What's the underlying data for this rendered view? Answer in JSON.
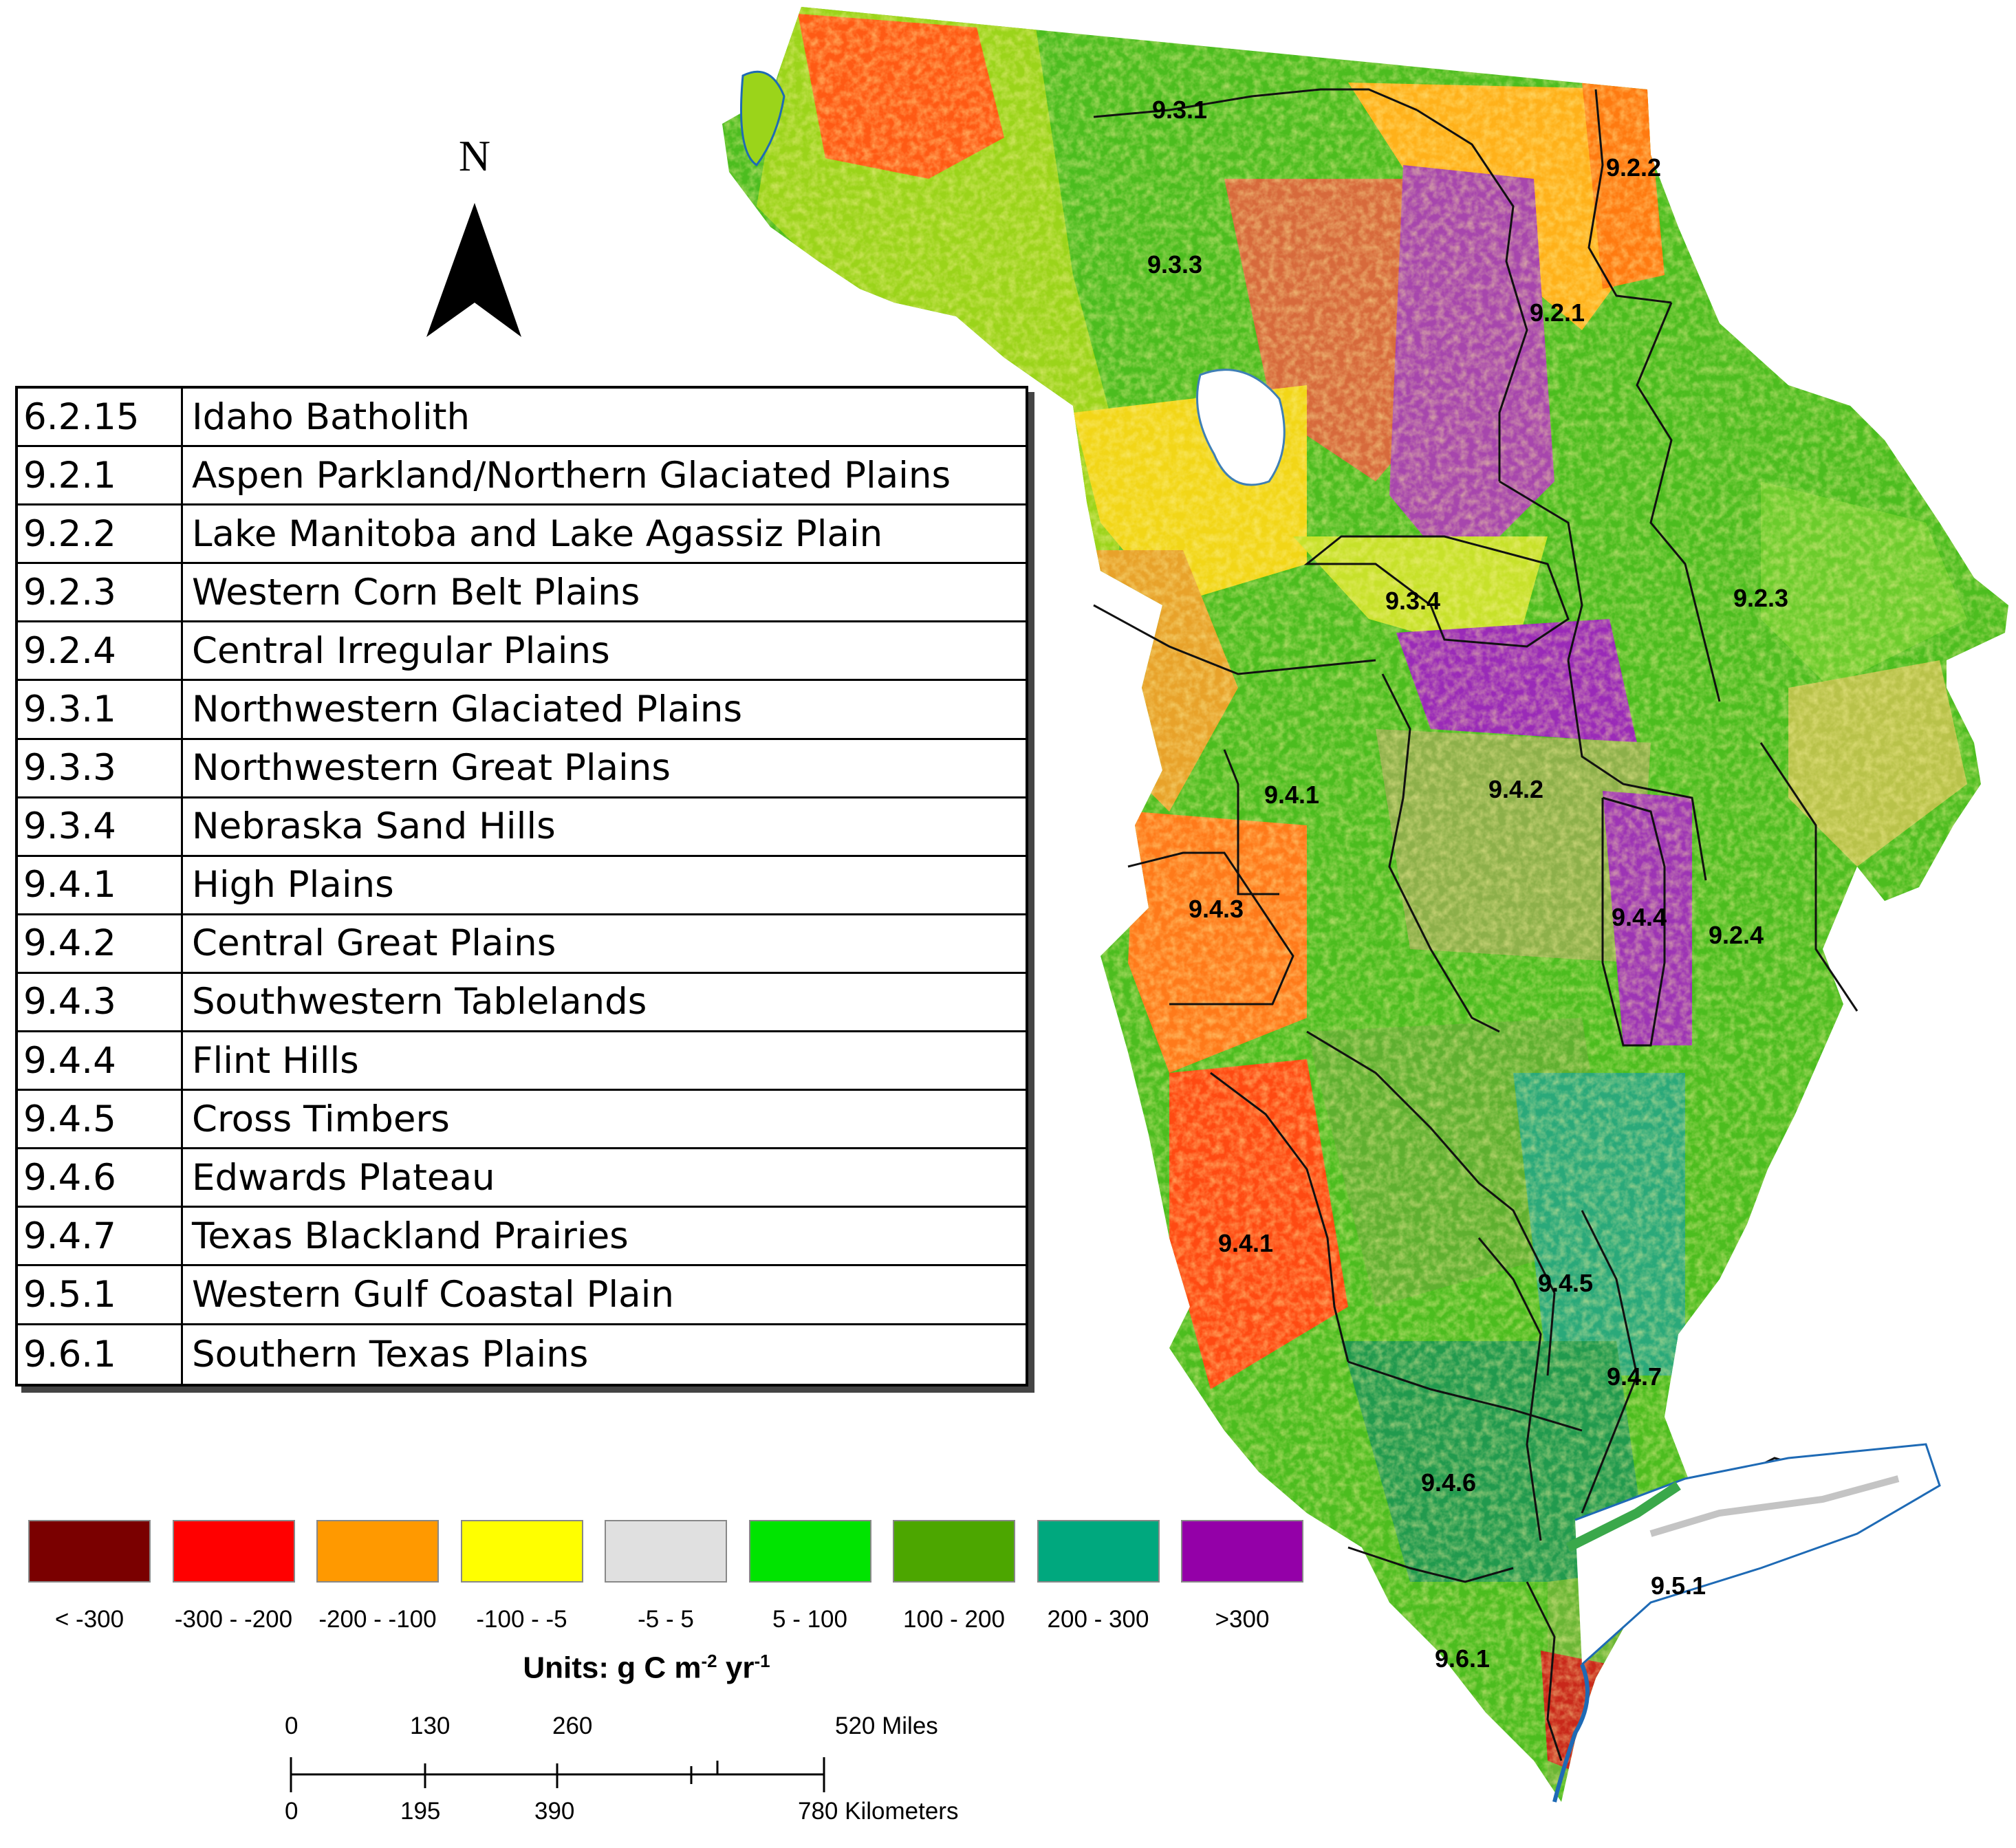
{
  "map": {
    "north_label": "N",
    "ecoregion_table": [
      {
        "code": "6.2.15",
        "name": "Idaho Batholith"
      },
      {
        "code": "9.2.1",
        "name": "Aspen Parkland/Northern Glaciated Plains"
      },
      {
        "code": "9.2.2",
        "name": "Lake Manitoba and Lake Agassiz Plain"
      },
      {
        "code": "9.2.3",
        "name": "Western Corn Belt Plains"
      },
      {
        "code": "9.2.4",
        "name": "Central Irregular Plains"
      },
      {
        "code": "9.3.1",
        "name": "Northwestern Glaciated Plains"
      },
      {
        "code": "9.3.3",
        "name": "Northwestern Great Plains"
      },
      {
        "code": "9.3.4",
        "name": "Nebraska Sand Hills"
      },
      {
        "code": "9.4.1",
        "name": "High Plains"
      },
      {
        "code": "9.4.2",
        "name": "Central Great Plains"
      },
      {
        "code": "9.4.3",
        "name": "Southwestern Tablelands"
      },
      {
        "code": "9.4.4",
        "name": "Flint Hills"
      },
      {
        "code": "9.4.5",
        "name": "Cross Timbers"
      },
      {
        "code": "9.4.6",
        "name": "Edwards Plateau"
      },
      {
        "code": "9.4.7",
        "name": "Texas Blackland Prairies"
      },
      {
        "code": "9.5.1",
        "name": "Western Gulf Coastal Plain"
      },
      {
        "code": "9.6.1",
        "name": "Southern Texas Plains"
      }
    ],
    "region_labels": [
      "9.3.1",
      "9.2.2",
      "9.3.3",
      "9.2.1",
      "9.2.3",
      "9.3.4",
      "9.4.1",
      "9.4.2",
      "9.4.3",
      "9.4.4",
      "9.2.4",
      "9.4.1",
      "9.4.5",
      "9.4.7",
      "9.4.6",
      "9.5.1",
      "9.6.1"
    ],
    "color_legend": [
      {
        "label": "< -300",
        "color": "#7a0000"
      },
      {
        "label": "-300 - -200",
        "color": "#ff0000"
      },
      {
        "label": "-200 - -100",
        "color": "#ff9900"
      },
      {
        "label": "-100 - -5",
        "color": "#ffff00"
      },
      {
        "label": "-5 - 5",
        "color": "#e0e0e0"
      },
      {
        "label": "5 - 100",
        "color": "#00e400"
      },
      {
        "label": "100 - 200",
        "color": "#4ca600"
      },
      {
        "label": "200 - 300",
        "color": "#00a87e"
      },
      {
        "label": ">300",
        "color": "#9400a8"
      }
    ],
    "units": {
      "prefix": "Units: g C m",
      "exp1": "-2",
      "mid": " yr",
      "exp2": "-1"
    },
    "scale_bar": {
      "miles_ticks": [
        "0",
        "130",
        "260",
        "520 Miles"
      ],
      "km_ticks": [
        "0",
        "195",
        "390",
        "780 Kilometers"
      ]
    }
  }
}
